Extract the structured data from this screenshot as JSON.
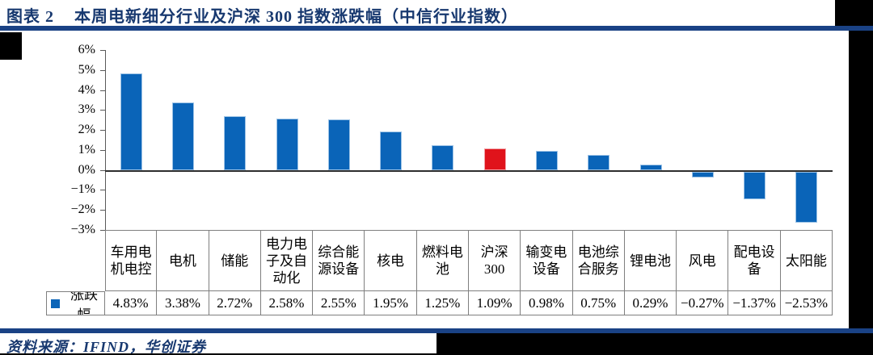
{
  "header": {
    "figure_label": "图表 2",
    "title": "本周电新细分行业及沪深 300 指数涨跌幅（中信行业指数）"
  },
  "chart_data": {
    "type": "bar",
    "title": "本周电新细分行业及沪深300指数涨跌幅（中信行业指数）",
    "series_name": "涨跌幅",
    "categories": [
      "车用电机电控",
      "电机",
      "储能",
      "电力电子及自动化",
      "综合能源设备",
      "核电",
      "燃料电池",
      "沪深300",
      "输变电设备",
      "电池综合服务",
      "锂电池",
      "风电",
      "配电设备",
      "太阳能"
    ],
    "category_labels_wrapped": [
      "车用电\n机电控",
      "电机",
      "储能",
      "电力电\n子及自\n动化",
      "综合能\n源设备",
      "核电",
      "燃料电\n池",
      "沪深\n300",
      "输变电\n设备",
      "电池综\n合服务",
      "锂电池",
      "风电",
      "配电设\n备",
      "太阳能"
    ],
    "values": [
      4.83,
      3.38,
      2.72,
      2.58,
      2.55,
      1.95,
      1.25,
      1.09,
      0.98,
      0.75,
      0.29,
      -0.27,
      -1.37,
      -2.53
    ],
    "value_labels": [
      "4.83%",
      "3.38%",
      "2.72%",
      "2.58%",
      "2.55%",
      "1.95%",
      "1.25%",
      "1.09%",
      "0.98%",
      "0.75%",
      "0.29%",
      "−0.27%",
      "−1.37%",
      "−2.53%"
    ],
    "highlight_index": 7,
    "ylim": [
      -3,
      6
    ],
    "ytick_step": 1,
    "ytick_labels": [
      "6%",
      "5%",
      "4%",
      "3%",
      "2%",
      "1%",
      "0%",
      "−1%",
      "−2%",
      "−3%"
    ],
    "grid": false,
    "legend_position": "bottom-table",
    "bar_color": "#0A64B8",
    "bar_border_color": "#9DC3E6",
    "highlight_color": "#E0131B",
    "highlight_border_color": "#F1A0A5"
  },
  "footer": {
    "source": "资料来源：IFIND，华创证券"
  },
  "colors": {
    "accent_navy": "#17386F",
    "rule_blue": "#1A4285",
    "table_border": "#7F7F7F",
    "axis_line": "#595959",
    "zero_line": "#2E2E2E"
  }
}
